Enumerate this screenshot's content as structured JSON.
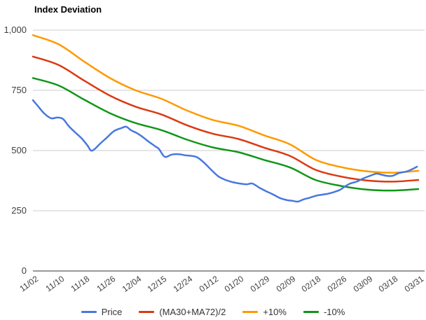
{
  "chart_data": {
    "type": "line",
    "title": "Index Deviation",
    "xlabel": "",
    "ylabel": "",
    "ylim": [
      0,
      1000
    ],
    "yticks": [
      0,
      250,
      500,
      750,
      1000
    ],
    "ytick_labels": [
      "0",
      "250",
      "500",
      "750",
      "1,000"
    ],
    "grid": "horizontal",
    "legend_position": "bottom",
    "xlabel_rotation": -36,
    "categories": [
      "11/02",
      "11/10",
      "11/18",
      "11/26",
      "12/04",
      "12/15",
      "12/24",
      "01/12",
      "01/20",
      "01/29",
      "02/09",
      "02/18",
      "02/26",
      "03/09",
      "03/18",
      "03/31"
    ],
    "series": [
      {
        "name": "Price",
        "color": "#4878DE",
        "values": [
          709,
          631,
          536,
          565,
          572,
          495,
          478,
          415,
          363,
          330,
          291,
          315,
          341,
          393,
          395,
          433
        ]
      },
      {
        "name": "(MA30+MA72)/2",
        "color": "#DC3912",
        "values": [
          890,
          855,
          790,
          728,
          682,
          650,
          605,
          570,
          548,
          512,
          478,
          420,
          392,
          376,
          371,
          378
        ]
      },
      {
        "name": "+10%",
        "color": "#FF9900",
        "values": [
          979,
          941,
          869,
          801,
          750,
          715,
          666,
          627,
          603,
          563,
          526,
          462,
          431,
          414,
          408,
          416
        ]
      },
      {
        "name": "-10%",
        "color": "#109618",
        "values": [
          801,
          770,
          711,
          655,
          614,
          585,
          545,
          513,
          493,
          461,
          430,
          378,
          353,
          338,
          334,
          340
        ]
      }
    ],
    "price_detail": [
      [
        0.0,
        709
      ],
      [
        0.16,
        689
      ],
      [
        0.44,
        654
      ],
      [
        0.71,
        634
      ],
      [
        0.95,
        637
      ],
      [
        1.17,
        631
      ],
      [
        1.39,
        602
      ],
      [
        1.64,
        576
      ],
      [
        1.91,
        549
      ],
      [
        2.13,
        520
      ],
      [
        2.26,
        500
      ],
      [
        2.4,
        506
      ],
      [
        2.62,
        529
      ],
      [
        2.89,
        555
      ],
      [
        3.16,
        581
      ],
      [
        3.44,
        593
      ],
      [
        3.63,
        599
      ],
      [
        3.82,
        584
      ],
      [
        4.04,
        573
      ],
      [
        4.25,
        558
      ],
      [
        4.53,
        535
      ],
      [
        4.77,
        517
      ],
      [
        4.91,
        506
      ],
      [
        5.13,
        474
      ],
      [
        5.4,
        483
      ],
      [
        5.67,
        485
      ],
      [
        5.95,
        480
      ],
      [
        6.22,
        477
      ],
      [
        6.41,
        471
      ],
      [
        6.68,
        448
      ],
      [
        6.95,
        419
      ],
      [
        7.23,
        392
      ],
      [
        7.5,
        378
      ],
      [
        7.77,
        369
      ],
      [
        8.05,
        363
      ],
      [
        8.32,
        360
      ],
      [
        8.54,
        363
      ],
      [
        8.81,
        346
      ],
      [
        9.08,
        331
      ],
      [
        9.36,
        317
      ],
      [
        9.63,
        302
      ],
      [
        9.9,
        294
      ],
      [
        10.12,
        291
      ],
      [
        10.31,
        288
      ],
      [
        10.53,
        297
      ],
      [
        10.8,
        305
      ],
      [
        11.08,
        314
      ],
      [
        11.46,
        320
      ],
      [
        11.73,
        328
      ],
      [
        11.95,
        337
      ],
      [
        12.16,
        352
      ],
      [
        12.35,
        363
      ],
      [
        12.63,
        372
      ],
      [
        12.85,
        384
      ],
      [
        13.12,
        395
      ],
      [
        13.36,
        404
      ],
      [
        13.53,
        401
      ],
      [
        13.77,
        395
      ],
      [
        13.99,
        395
      ],
      [
        14.26,
        407
      ],
      [
        14.54,
        413
      ],
      [
        14.75,
        422
      ],
      [
        14.95,
        433
      ]
    ]
  },
  "colors": {
    "background": "#FFFFFF",
    "grid": "#CCCCCC",
    "axis": "#333333",
    "tick_text": "#404040",
    "title_text": "#000000",
    "legend_text": "#333333"
  }
}
